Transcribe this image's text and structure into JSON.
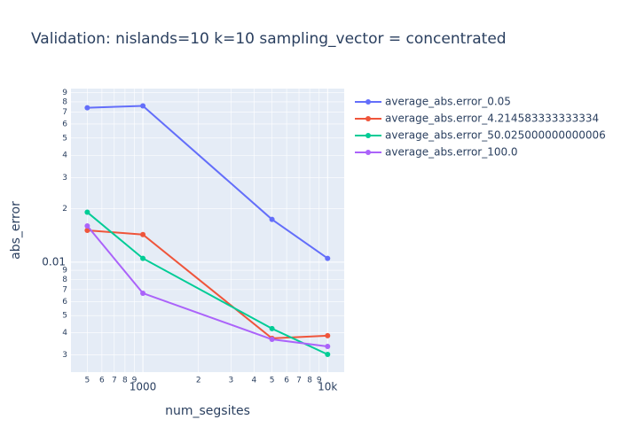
{
  "chart_data": {
    "type": "line",
    "title": "Validation: nislands=10 k=10 sampling_vector = concentrated",
    "x_label": "num_segsites",
    "y_label": "abs_error",
    "x": [
      500,
      1000,
      5000,
      10000
    ],
    "series": [
      {
        "name": "average_abs.error_0.05",
        "color": "#636efa",
        "values": [
          0.0741,
          0.0759,
          0.0174,
          0.0105
        ]
      },
      {
        "name": "average_abs.error_4.214583333333334",
        "color": "#EF553B",
        "values": [
          0.0151,
          0.0143,
          0.00372,
          0.00385
        ]
      },
      {
        "name": "average_abs.error_50.025000000000006",
        "color": "#00cc96",
        "values": [
          0.0191,
          0.0105,
          0.00422,
          0.00302
        ]
      },
      {
        "name": "average_abs.error_100.0",
        "color": "#ab63fa",
        "values": [
          0.016,
          0.00668,
          0.00367,
          0.00335
        ]
      }
    ],
    "x_log": true,
    "y_log": true,
    "grid": true,
    "xlim": [
      408,
      12300
    ],
    "ylim": [
      0.0024,
      0.095
    ],
    "xticks": [
      {
        "value": 500,
        "label": "5"
      },
      {
        "value": 600,
        "label": "6"
      },
      {
        "value": 700,
        "label": "7"
      },
      {
        "value": 800,
        "label": "8"
      },
      {
        "value": 900,
        "label": "9"
      },
      1000,
      {
        "value": 2000,
        "label": "2"
      },
      {
        "value": 3000,
        "label": "3"
      },
      {
        "value": 4000,
        "label": "4"
      },
      {
        "value": 5000,
        "label": "5"
      },
      {
        "value": 6000,
        "label": "6"
      },
      {
        "value": 7000,
        "label": "7"
      },
      {
        "value": 8000,
        "label": "8"
      },
      {
        "value": 9000,
        "label": "9"
      },
      {
        "value": 10000,
        "label": "10k"
      }
    ],
    "yticks": [
      {
        "value": 0.003,
        "label": "3"
      },
      {
        "value": 0.004,
        "label": "4"
      },
      {
        "value": 0.005,
        "label": "5"
      },
      {
        "value": 0.006,
        "label": "6"
      },
      {
        "value": 0.007,
        "label": "7"
      },
      {
        "value": 0.008,
        "label": "8"
      },
      {
        "value": 0.009,
        "label": "9"
      },
      0.01,
      {
        "value": 0.02,
        "label": "2"
      },
      {
        "value": 0.03,
        "label": "3"
      },
      {
        "value": 0.04,
        "label": "4"
      },
      {
        "value": 0.05,
        "label": "5"
      },
      {
        "value": 0.06,
        "label": "6"
      },
      {
        "value": 0.07,
        "label": "7"
      },
      {
        "value": 0.08,
        "label": "8"
      },
      {
        "value": 0.09,
        "label": "9"
      }
    ]
  }
}
